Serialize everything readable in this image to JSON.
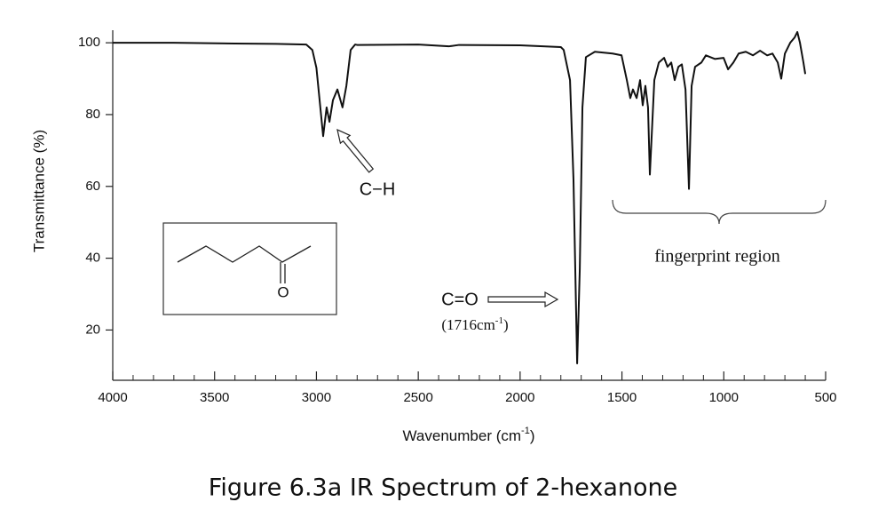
{
  "chart_data": {
    "type": "line",
    "title": "Figure 6.3a IR Spectrum of 2-hexanone",
    "y_label": "Transmittance (%)",
    "x_label": {
      "text": "Wavenumber (cm",
      "superscript": "-1",
      "suffix": ")"
    },
    "xlim": [
      4000,
      500
    ],
    "xticks": [
      4000,
      3500,
      3000,
      2500,
      2000,
      1500,
      1000,
      500
    ],
    "xminor_ticks": [
      3900,
      3800,
      3700,
      3600,
      3400,
      3300,
      3200,
      3100,
      2900,
      2800,
      2700,
      2600,
      2400,
      2300,
      2200,
      2100,
      1900,
      1800,
      1700,
      1600,
      1400,
      1300,
      1200,
      1100,
      900,
      800,
      700,
      600
    ],
    "ylim": [
      6,
      103.5
    ],
    "yticks": [
      20,
      40,
      60,
      80,
      100
    ],
    "annotations": {
      "ch": "C−H",
      "co": "C=O",
      "co_wavenumber": {
        "text": "(1716cm",
        "superscript": "-1",
        "suffix": ")"
      },
      "fingerprint": "fingerprint region",
      "molecule_atom": "O"
    },
    "series": [
      {
        "color": "#111111",
        "x": [
          4000,
          3700,
          3400,
          3200,
          3050,
          3020,
          3000,
          2967,
          2950,
          2936,
          2919,
          2897,
          2872,
          2853,
          2832,
          2810,
          2800,
          2500,
          2350,
          2300,
          2000,
          1800,
          1786,
          1755,
          1738,
          1720,
          1707,
          1694,
          1677,
          1633,
          1546,
          1502,
          1476,
          1459,
          1446,
          1428,
          1411,
          1398,
          1385,
          1372,
          1363,
          1341,
          1319,
          1293,
          1276,
          1258,
          1241,
          1223,
          1206,
          1188,
          1171,
          1158,
          1141,
          1110,
          1088,
          1044,
          1001,
          979,
          953,
          927,
          892,
          857,
          822,
          787,
          761,
          735,
          718,
          700,
          674,
          652,
          639,
          626,
          609,
          600
        ],
        "values": [
          100,
          100,
          99.8,
          99.7,
          99.5,
          98,
          93,
          74,
          82,
          78,
          84,
          87,
          82,
          88,
          98,
          99.5,
          99.4,
          99.5,
          99,
          99.4,
          99.3,
          98.8,
          98,
          89.6,
          62,
          10.7,
          37,
          82,
          96,
          97.5,
          97,
          96.5,
          89.6,
          84.6,
          87,
          84.6,
          89.6,
          82.6,
          88,
          82,
          63.3,
          89.6,
          94.5,
          95.8,
          93.3,
          94.5,
          89.6,
          93.3,
          94,
          87,
          59.3,
          88,
          93.3,
          94.5,
          96.5,
          95.5,
          95.8,
          92.6,
          94.5,
          97,
          97.5,
          96.5,
          97.8,
          96.5,
          97,
          94.5,
          90,
          97,
          100,
          101.5,
          103,
          100,
          94.5,
          91.3
        ]
      }
    ]
  }
}
